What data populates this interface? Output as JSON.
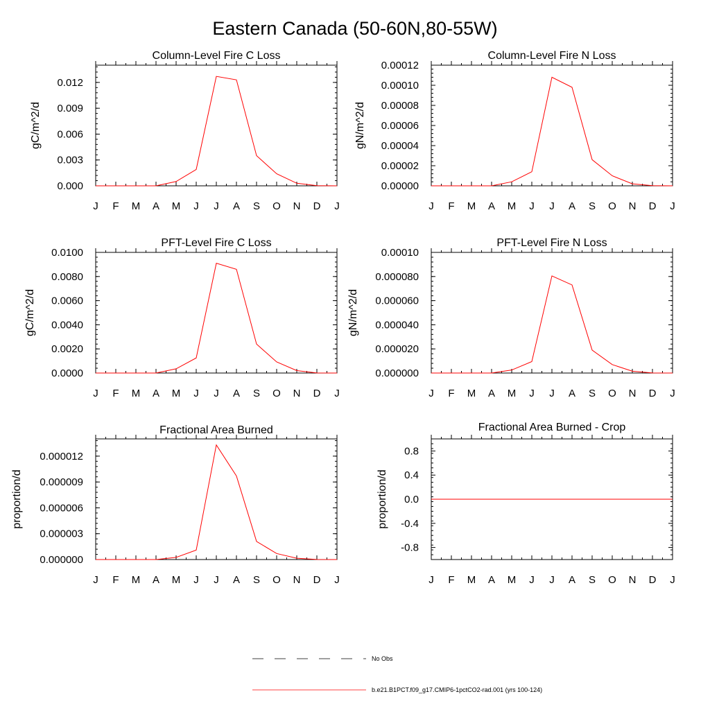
{
  "figure": {
    "title": "Eastern Canada (50-60N,80-55W)",
    "legend": [
      {
        "label": "No Obs",
        "color": "#000000",
        "style": "dashed"
      },
      {
        "label": "b.e21.B1PCT.f09_g17.CMIP6-1pctCO2-rad.001 (yrs 100-124)",
        "color": "#ff0000",
        "style": "solid"
      }
    ]
  },
  "chart_data": [
    {
      "type": "line",
      "title": "Column-Level Fire C Loss",
      "ylabel": "gC/m^2/d",
      "xlabel": "",
      "categories": [
        "J",
        "F",
        "M",
        "A",
        "M",
        "J",
        "J",
        "A",
        "S",
        "O",
        "N",
        "D",
        "J"
      ],
      "ylim": [
        0,
        0.014
      ],
      "yticks": [
        0,
        0.003,
        0.006,
        0.009,
        0.012
      ],
      "ytick_labels": [
        "0.000",
        "0.003",
        "0.006",
        "0.009",
        "0.012"
      ],
      "series": [
        {
          "color": "#ff0000",
          "values": [
            0,
            0,
            0,
            0,
            0.0005,
            0.0019,
            0.0127,
            0.0123,
            0.0035,
            0.0014,
            0.0003,
            2e-05,
            0
          ]
        }
      ]
    },
    {
      "type": "line",
      "title": "Column-Level Fire N Loss",
      "ylabel": "gN/m^2/d",
      "xlabel": "",
      "categories": [
        "J",
        "F",
        "M",
        "A",
        "M",
        "J",
        "J",
        "A",
        "S",
        "O",
        "N",
        "D",
        "J"
      ],
      "ylim": [
        0,
        0.00012
      ],
      "yticks": [
        0,
        2e-05,
        4e-05,
        6e-05,
        8e-05,
        0.0001,
        0.00012
      ],
      "ytick_labels": [
        "0.00000",
        "0.00002",
        "0.00004",
        "0.00006",
        "0.00008",
        "0.00010",
        "0.00012"
      ],
      "series": [
        {
          "color": "#ff0000",
          "values": [
            0,
            0,
            0,
            0,
            4e-06,
            1.4e-05,
            0.000108,
            9.8e-05,
            2.6e-05,
            1e-05,
            2e-06,
            2e-07,
            0
          ]
        }
      ]
    },
    {
      "type": "line",
      "title": "PFT-Level Fire C Loss",
      "ylabel": "gC/m^2/d",
      "xlabel": "",
      "categories": [
        "J",
        "F",
        "M",
        "A",
        "M",
        "J",
        "J",
        "A",
        "S",
        "O",
        "N",
        "D",
        "J"
      ],
      "ylim": [
        0,
        0.01
      ],
      "yticks": [
        0,
        0.002,
        0.004,
        0.006,
        0.008,
        0.01
      ],
      "ytick_labels": [
        "0.0000",
        "0.0020",
        "0.0040",
        "0.0060",
        "0.0080",
        "0.0100"
      ],
      "series": [
        {
          "color": "#ff0000",
          "values": [
            0,
            0,
            0,
            0,
            0.00035,
            0.00125,
            0.0091,
            0.0086,
            0.0024,
            0.00092,
            0.0002,
            1e-05,
            0
          ]
        }
      ]
    },
    {
      "type": "line",
      "title": "PFT-Level Fire N Loss",
      "ylabel": "gN/m^2/d",
      "xlabel": "",
      "categories": [
        "J",
        "F",
        "M",
        "A",
        "M",
        "J",
        "J",
        "A",
        "S",
        "O",
        "N",
        "D",
        "J"
      ],
      "ylim": [
        0,
        0.0001
      ],
      "yticks": [
        0,
        2e-05,
        4e-05,
        6e-05,
        8e-05,
        0.0001
      ],
      "ytick_labels": [
        "0.000000",
        "0.000020",
        "0.000040",
        "0.000060",
        "0.000080",
        "0.00010"
      ],
      "series": [
        {
          "color": "#ff0000",
          "values": [
            0,
            0,
            0,
            0,
            2.5e-06,
            9.5e-06,
            8.05e-05,
            7.3e-05,
            1.9e-05,
            7e-06,
            1.5e-06,
            1e-07,
            0
          ]
        }
      ]
    },
    {
      "type": "line",
      "title": "Fractional Area Burned",
      "ylabel": "proportion/d",
      "xlabel": "",
      "categories": [
        "J",
        "F",
        "M",
        "A",
        "M",
        "J",
        "J",
        "A",
        "S",
        "O",
        "N",
        "D",
        "J"
      ],
      "ylim": [
        0,
        1.4e-05
      ],
      "yticks": [
        0,
        3e-06,
        6e-06,
        9e-06,
        1.2e-05
      ],
      "ytick_labels": [
        "0.000000",
        "0.000003",
        "0.000006",
        "0.000009",
        "0.000012"
      ],
      "series": [
        {
          "color": "#ff0000",
          "values": [
            0,
            0,
            0,
            0,
            2.5e-07,
            1.1e-06,
            1.33e-05,
            9.7e-06,
            2.1e-06,
            7e-07,
            1.5e-07,
            1e-08,
            0
          ]
        }
      ]
    },
    {
      "type": "line",
      "title": "Fractional Area Burned - Crop",
      "ylabel": "proportion/d",
      "xlabel": "",
      "categories": [
        "J",
        "F",
        "M",
        "A",
        "M",
        "J",
        "J",
        "A",
        "S",
        "O",
        "N",
        "D",
        "J"
      ],
      "ylim": [
        -1,
        1
      ],
      "yticks": [
        -0.8,
        -0.4,
        0,
        0.4,
        0.8
      ],
      "ytick_labels": [
        "-0.8",
        "-0.4",
        "0.0",
        "0.4",
        "0.8"
      ],
      "series": [
        {
          "color": "#ff0000",
          "values": [
            0,
            0,
            0,
            0,
            0,
            0,
            0,
            0,
            0,
            0,
            0,
            0,
            0
          ]
        }
      ]
    }
  ]
}
